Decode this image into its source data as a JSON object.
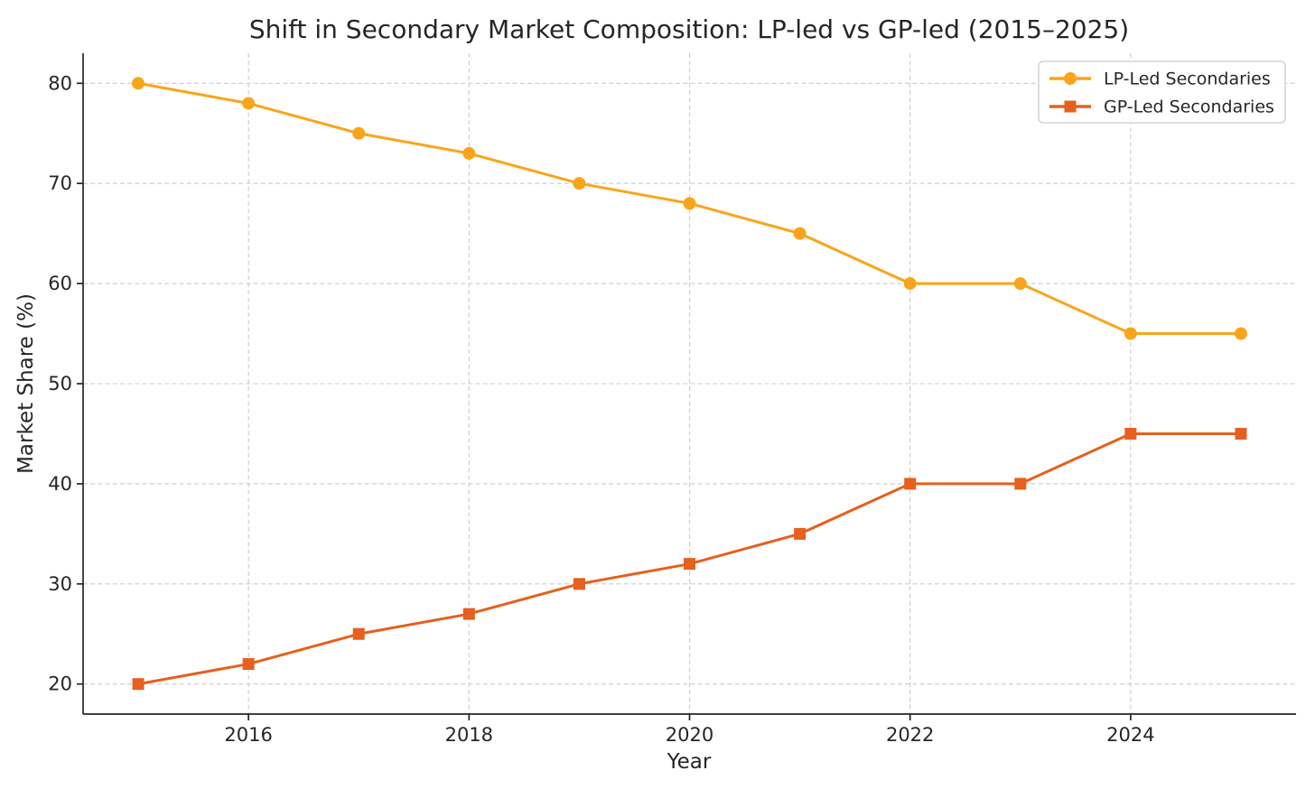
{
  "chart_data": {
    "type": "line",
    "title": "Shift in Secondary Market Composition: LP-led vs GP-led (2015–2025)",
    "xlabel": "Year",
    "ylabel": "Market Share (%)",
    "x": [
      2015,
      2016,
      2017,
      2018,
      2019,
      2020,
      2021,
      2022,
      2023,
      2024,
      2025
    ],
    "series": [
      {
        "name": "LP-Led Secondaries",
        "marker": "circle",
        "color": "#F9A51B",
        "values": [
          80,
          78,
          75,
          73,
          70,
          68,
          65,
          60,
          60,
          55,
          55
        ]
      },
      {
        "name": "GP-Led Secondaries",
        "marker": "square",
        "color": "#E6601E",
        "values": [
          20,
          22,
          25,
          27,
          30,
          32,
          35,
          40,
          40,
          45,
          45
        ]
      }
    ],
    "xlim": [
      2014.5,
      2025.5
    ],
    "ylim": [
      17,
      83
    ],
    "xticks": [
      2016,
      2018,
      2020,
      2022,
      2024
    ],
    "yticks": [
      20,
      30,
      40,
      50,
      60,
      70,
      80
    ],
    "grid": true,
    "legend_position": "upper right",
    "colors": {
      "text": "#262626",
      "grid": "#cbcbcb",
      "spine": "#262626",
      "background": "#ffffff"
    }
  }
}
